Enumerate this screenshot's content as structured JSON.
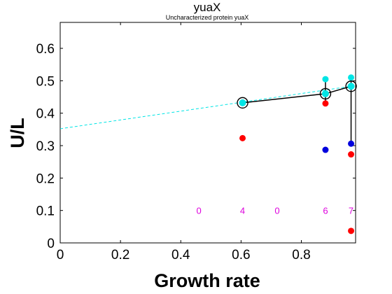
{
  "chart_data": {
    "type": "scatter",
    "title": "yuaX",
    "subtitle": "Uncharacterized protein yuaX",
    "xlabel": "Growth rate",
    "ylabel": "U/L",
    "xlim": [
      0,
      0.98
    ],
    "ylim": [
      0,
      0.68
    ],
    "xticks": [
      0,
      0.2,
      0.4,
      0.6,
      0.8
    ],
    "xtick_labels": [
      "0",
      "0.2",
      "0.4",
      "0.6",
      "0.8"
    ],
    "yticks": [
      0,
      0.1,
      0.2,
      0.3,
      0.4,
      0.5,
      0.6
    ],
    "ytick_labels": [
      "0",
      "0.1",
      "0.2",
      "0.3",
      "0.4",
      "0.5",
      "0.6"
    ],
    "grid": false,
    "colors": {
      "red": "#ff0000",
      "blue": "#0000dd",
      "cyan": "#00e5e5",
      "magenta": "#dd00dd",
      "black": "#000000"
    },
    "series": [
      {
        "color": "red",
        "points": [
          [
            0.605,
            0.323
          ],
          [
            0.88,
            0.43
          ],
          [
            0.965,
            0.273
          ],
          [
            0.965,
            0.037
          ]
        ]
      },
      {
        "color": "blue",
        "points": [
          [
            0.88,
            0.287
          ],
          [
            0.965,
            0.306
          ]
        ]
      },
      {
        "color": "cyan",
        "points": [
          [
            0.88,
            0.505
          ],
          [
            0.965,
            0.51
          ]
        ]
      },
      {
        "color": "cyan",
        "style": "open-circle",
        "points": [
          [
            0.605,
            0.432
          ],
          [
            0.88,
            0.46
          ],
          [
            0.965,
            0.483
          ]
        ]
      }
    ],
    "mean_line": [
      [
        0.605,
        0.432
      ],
      [
        0.88,
        0.46
      ],
      [
        0.965,
        0.483
      ]
    ],
    "error_bars": [
      {
        "x": 0.605,
        "low": 0.427,
        "high": 0.437
      },
      {
        "x": 0.88,
        "low": 0.43,
        "high": 0.505
      },
      {
        "x": 0.965,
        "low": 0.306,
        "high": 0.51
      }
    ],
    "fit_line": {
      "x": [
        0,
        0.965
      ],
      "y": [
        0.352,
        0.483
      ]
    },
    "counts": [
      {
        "x": 0.46,
        "label": "0"
      },
      {
        "x": 0.605,
        "label": "4"
      },
      {
        "x": 0.72,
        "label": "0"
      },
      {
        "x": 0.88,
        "label": "6"
      },
      {
        "x": 0.965,
        "label": "7"
      }
    ],
    "counts_y": 0.1
  }
}
